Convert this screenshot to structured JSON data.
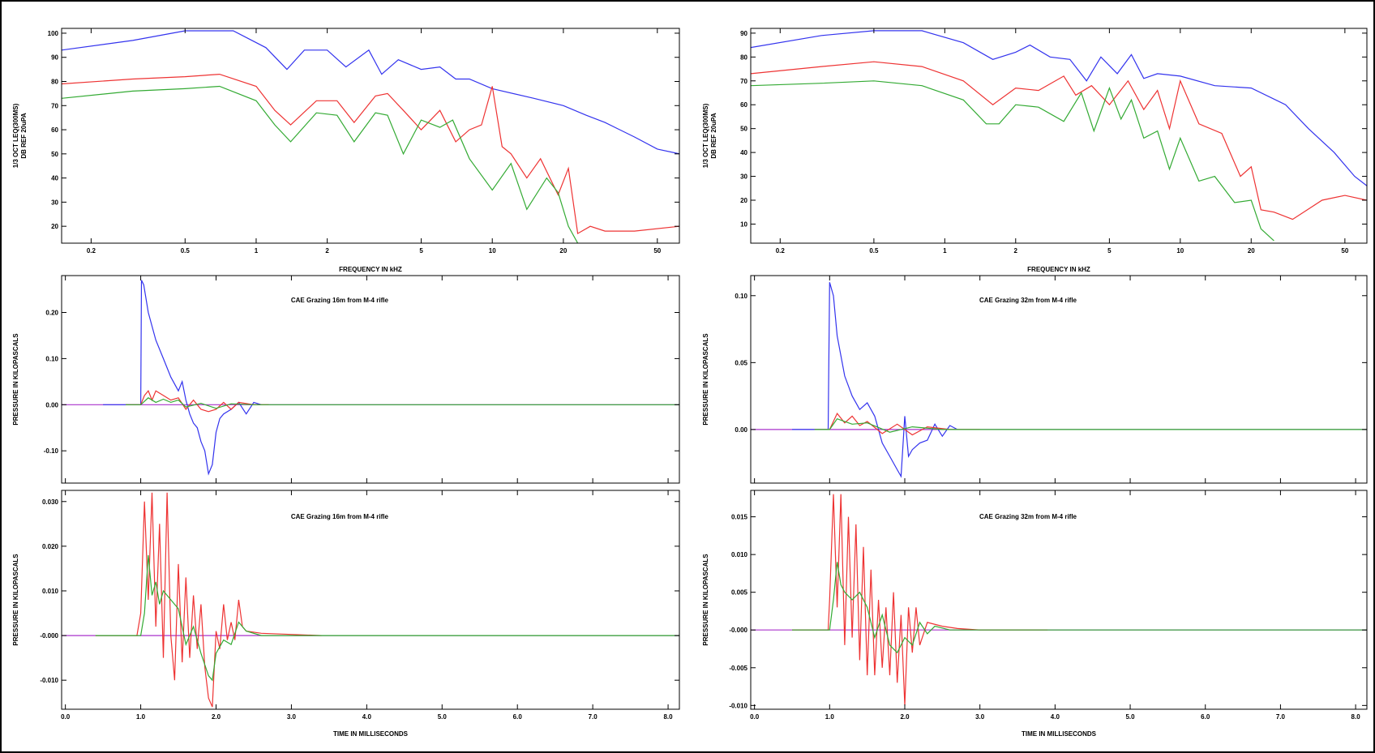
{
  "colors": {
    "blue": "#3333ee",
    "red": "#ee3333",
    "green": "#33aa33",
    "purple": "#aa33cc"
  },
  "chart_data": [
    {
      "type": "line",
      "name": "spectrum-left",
      "xscale": "log",
      "xlim": [
        0.15,
        62
      ],
      "ylim": [
        13,
        102
      ],
      "xticks": [
        0.2,
        0.5,
        1,
        2,
        5,
        10,
        20,
        50
      ],
      "xtick_labels": [
        "0.2",
        "0.5",
        "1",
        "2",
        "5",
        "10",
        "20",
        "50"
      ],
      "yticks": [
        20,
        30,
        40,
        50,
        60,
        70,
        80,
        90,
        100
      ],
      "ytick_labels": [
        "20",
        "30",
        "40",
        "50",
        "60",
        "70",
        "80",
        "90",
        "100"
      ],
      "xlabel": "FREQUENCY IN kHZ",
      "ylabel": "1/3 OCT LEQ(300MS)",
      "ylabel2": "DB REF 20uPA",
      "title": "",
      "series": [
        {
          "color": "blue",
          "x": [
            0.15,
            0.3,
            0.5,
            0.8,
            1.1,
            1.35,
            1.6,
            2.0,
            2.4,
            3.0,
            3.4,
            4.0,
            5.0,
            6.0,
            7.0,
            8.0,
            10.0,
            15.0,
            20.0,
            25.0,
            30.0,
            40.0,
            50.0,
            62.0
          ],
          "y": [
            93,
            97,
            101,
            101,
            94,
            85,
            93,
            93,
            86,
            93,
            83,
            89,
            85,
            86,
            81,
            81,
            77,
            73,
            70,
            66,
            63,
            57,
            52,
            50
          ]
        },
        {
          "color": "red",
          "x": [
            0.15,
            0.3,
            0.5,
            0.7,
            1.0,
            1.2,
            1.4,
            1.8,
            2.2,
            2.6,
            3.2,
            3.6,
            4.2,
            5.0,
            6.0,
            7.0,
            8.0,
            9.0,
            10.0,
            11.0,
            12.0,
            14.0,
            16.0,
            19.0,
            21.0,
            23.0,
            26.0,
            30.0,
            40.0,
            62.0
          ],
          "y": [
            79,
            81,
            82,
            83,
            78,
            68,
            62,
            72,
            72,
            63,
            74,
            75,
            68,
            60,
            68,
            55,
            60,
            62,
            78,
            53,
            50,
            40,
            48,
            33,
            44,
            17,
            20,
            18,
            18,
            20
          ]
        },
        {
          "color": "green",
          "x": [
            0.15,
            0.3,
            0.5,
            0.7,
            1.0,
            1.2,
            1.4,
            1.8,
            2.2,
            2.6,
            3.2,
            3.6,
            4.2,
            5.0,
            6.0,
            6.8,
            8.0,
            10.0,
            12.0,
            14.0,
            17.0,
            19.0,
            21.0,
            23.0
          ],
          "y": [
            73,
            76,
            77,
            78,
            72,
            62,
            55,
            67,
            66,
            55,
            67,
            66,
            50,
            64,
            61,
            64,
            48,
            35,
            46,
            27,
            40,
            34,
            20,
            13
          ]
        }
      ]
    },
    {
      "type": "line",
      "name": "spectrum-right",
      "xscale": "log",
      "xlim": [
        0.15,
        62
      ],
      "ylim": [
        2,
        92
      ],
      "xticks": [
        0.2,
        0.5,
        1,
        2,
        5,
        10,
        20,
        50
      ],
      "xtick_labels": [
        "0.2",
        "0.5",
        "1",
        "2",
        "5",
        "10",
        "20",
        "50"
      ],
      "yticks": [
        10,
        20,
        30,
        40,
        50,
        60,
        70,
        80,
        90
      ],
      "ytick_labels": [
        "10",
        "20",
        "30",
        "40",
        "50",
        "60",
        "70",
        "80",
        "90"
      ],
      "xlabel": "FREQUENCY IN kHZ",
      "ylabel": "1/3 OCT LEQ(300MS)",
      "ylabel2": "DB REF 20uPA",
      "title": "",
      "series": [
        {
          "color": "blue",
          "x": [
            0.15,
            0.3,
            0.5,
            0.8,
            1.2,
            1.6,
            2.0,
            2.3,
            2.8,
            3.4,
            4.0,
            4.6,
            5.4,
            6.2,
            7.0,
            8.0,
            10.0,
            14.0,
            20.0,
            28.0,
            35.0,
            45.0,
            55.0,
            62.0
          ],
          "y": [
            84,
            89,
            91,
            91,
            86,
            79,
            82,
            85,
            80,
            79,
            70,
            80,
            73,
            81,
            71,
            73,
            72,
            68,
            67,
            60,
            50,
            40,
            30,
            26
          ]
        },
        {
          "color": "red",
          "x": [
            0.15,
            0.3,
            0.5,
            0.8,
            1.2,
            1.6,
            2.0,
            2.5,
            3.2,
            3.6,
            4.2,
            5.0,
            6.0,
            7.0,
            8.0,
            9.0,
            10.0,
            12.0,
            15.0,
            18.0,
            20.0,
            22.0,
            25.0,
            30.0,
            40.0,
            50.0,
            62.0
          ],
          "y": [
            73,
            76,
            78,
            76,
            70,
            60,
            67,
            66,
            72,
            64,
            68,
            60,
            70,
            58,
            66,
            50,
            70,
            52,
            48,
            30,
            34,
            16,
            15,
            12,
            20,
            22,
            20
          ]
        },
        {
          "color": "green",
          "x": [
            0.15,
            0.3,
            0.5,
            0.8,
            1.2,
            1.5,
            1.7,
            2.0,
            2.5,
            3.2,
            3.8,
            4.3,
            5.0,
            5.6,
            6.2,
            7.0,
            8.0,
            9.0,
            10.0,
            12.0,
            14.0,
            17.0,
            20.0,
            22.0,
            25.0
          ],
          "y": [
            68,
            69,
            70,
            68,
            62,
            52,
            52,
            60,
            59,
            53,
            65,
            49,
            67,
            54,
            62,
            46,
            49,
            33,
            46,
            28,
            30,
            19,
            20,
            8,
            3
          ]
        }
      ]
    },
    {
      "type": "line",
      "name": "pressure-left",
      "title": "CAE Grazing 16m from M-4 rifle",
      "xlim": [
        -0.05,
        8.15
      ],
      "ylim": [
        -0.17,
        0.28
      ],
      "xticks": [
        0,
        1,
        2,
        3,
        4,
        5,
        6,
        7,
        8
      ],
      "xtick_labels": [],
      "yticks": [
        0.2,
        0.1,
        0.0,
        -0.1
      ],
      "ytick_labels": [
        "0.20",
        "0.10",
        "0.00",
        "-0.10"
      ],
      "xlabel": "",
      "ylabel": "PRESSURE IN KILOPASCALS",
      "series": [
        {
          "color": "purple",
          "x": [
            -0.05,
            8.15
          ],
          "y": [
            0,
            0
          ]
        },
        {
          "color": "blue",
          "x": [
            0.5,
            1.0,
            1.01,
            1.04,
            1.1,
            1.2,
            1.3,
            1.4,
            1.5,
            1.55,
            1.6,
            1.65,
            1.7,
            1.75,
            1.8,
            1.85,
            1.9,
            1.95,
            2.0,
            2.05,
            2.1,
            2.2,
            2.3,
            2.4,
            2.5,
            2.6
          ],
          "y": [
            0,
            0,
            0.27,
            0.26,
            0.2,
            0.14,
            0.1,
            0.06,
            0.03,
            0.05,
            0.01,
            -0.02,
            -0.04,
            -0.05,
            -0.08,
            -0.1,
            -0.15,
            -0.13,
            -0.06,
            -0.03,
            -0.02,
            -0.01,
            0.005,
            -0.02,
            0.005,
            0
          ]
        },
        {
          "color": "red",
          "x": [
            0.8,
            1.0,
            1.05,
            1.1,
            1.15,
            1.2,
            1.3,
            1.4,
            1.5,
            1.6,
            1.7,
            1.8,
            1.9,
            2.0,
            2.1,
            2.2,
            2.3,
            2.5,
            2.7
          ],
          "y": [
            0,
            0,
            0.02,
            0.03,
            0.01,
            0.03,
            0.02,
            0.01,
            0.015,
            -0.01,
            0.01,
            -0.01,
            -0.015,
            -0.01,
            0.005,
            -0.01,
            0.005,
            0,
            0
          ]
        },
        {
          "color": "green",
          "x": [
            0.8,
            1.0,
            1.1,
            1.2,
            1.3,
            1.4,
            1.5,
            1.6,
            1.8,
            2.0,
            2.2,
            2.5,
            8.15
          ],
          "y": [
            0,
            0,
            0.015,
            0.005,
            0.012,
            0.005,
            0.01,
            -0.005,
            0.003,
            -0.008,
            0.002,
            0,
            0
          ]
        }
      ]
    },
    {
      "type": "line",
      "name": "pressure-right",
      "title": "CAE Grazing 32m from M-4 rifle",
      "xlim": [
        -0.05,
        8.15
      ],
      "ylim": [
        -0.04,
        0.115
      ],
      "xticks": [
        0,
        1,
        2,
        3,
        4,
        5,
        6,
        7,
        8
      ],
      "xtick_labels": [],
      "yticks": [
        0.1,
        0.05,
        0.0
      ],
      "ytick_labels": [
        "0.10",
        "0.05",
        "0.00"
      ],
      "xlabel": "",
      "ylabel": "PRESSURE IN KILOPASCALS",
      "series": [
        {
          "color": "purple",
          "x": [
            -0.05,
            8.15
          ],
          "y": [
            0,
            0
          ]
        },
        {
          "color": "blue",
          "x": [
            0.5,
            0.98,
            1.0,
            1.05,
            1.1,
            1.2,
            1.3,
            1.4,
            1.5,
            1.6,
            1.7,
            1.8,
            1.9,
            1.95,
            2.0,
            2.05,
            2.1,
            2.2,
            2.3,
            2.4,
            2.5,
            2.6,
            2.7
          ],
          "y": [
            0,
            0,
            0.11,
            0.1,
            0.07,
            0.04,
            0.025,
            0.015,
            0.02,
            0.01,
            -0.01,
            -0.02,
            -0.03,
            -0.035,
            0.01,
            -0.02,
            -0.015,
            -0.01,
            -0.008,
            0.004,
            -0.005,
            0.003,
            0
          ]
        },
        {
          "color": "red",
          "x": [
            0.8,
            1.0,
            1.1,
            1.2,
            1.3,
            1.4,
            1.5,
            1.7,
            1.9,
            2.1,
            2.3,
            2.6,
            3.0
          ],
          "y": [
            0,
            0,
            0.012,
            0.005,
            0.01,
            0.003,
            0.006,
            -0.003,
            0.004,
            -0.004,
            0.002,
            0,
            0
          ]
        },
        {
          "color": "green",
          "x": [
            0.8,
            1.0,
            1.1,
            1.3,
            1.5,
            1.8,
            2.1,
            2.5,
            8.15
          ],
          "y": [
            0,
            0,
            0.008,
            0.004,
            0.005,
            -0.002,
            0.002,
            0,
            0
          ]
        }
      ]
    },
    {
      "type": "line",
      "name": "filtered-left",
      "title": "CAE Grazing 16m from M-4 rifle",
      "xlim": [
        -0.05,
        8.15
      ],
      "ylim": [
        -0.0165,
        0.0325
      ],
      "xticks": [
        0,
        1,
        2,
        3,
        4,
        5,
        6,
        7,
        8
      ],
      "xtick_labels": [
        "0.0",
        "1.0",
        "2.0",
        "3.0",
        "4.0",
        "5.0",
        "6.0",
        "7.0",
        "8.0"
      ],
      "yticks": [
        0.03,
        0.02,
        0.01,
        0,
        -0.01
      ],
      "ytick_labels": [
        "0.030",
        "0.020",
        "0.010",
        "-0.000",
        "-0.010"
      ],
      "xlabel": "TIME IN MILLISECONDS",
      "ylabel": "PRESSURE IN KILOPASCALS",
      "series": [
        {
          "color": "purple",
          "x": [
            -0.05,
            8.15
          ],
          "y": [
            0,
            0
          ]
        },
        {
          "color": "red",
          "x": [
            0.4,
            0.95,
            1.0,
            1.05,
            1.1,
            1.15,
            1.2,
            1.25,
            1.3,
            1.35,
            1.4,
            1.45,
            1.5,
            1.55,
            1.6,
            1.65,
            1.7,
            1.75,
            1.8,
            1.85,
            1.9,
            1.95,
            2.0,
            2.05,
            2.1,
            2.15,
            2.2,
            2.25,
            2.3,
            2.35,
            2.4,
            2.6,
            3.4
          ],
          "y": [
            0,
            0,
            0.005,
            0.03,
            0.008,
            0.032,
            0.002,
            0.025,
            -0.005,
            0.032,
            0.0,
            -0.01,
            0.016,
            -0.006,
            0.013,
            -0.005,
            0.009,
            -0.003,
            0.007,
            -0.007,
            -0.014,
            -0.016,
            0.001,
            -0.003,
            0.007,
            -0.001,
            0.003,
            -0.001,
            0.008,
            0.002,
            0.001,
            0.0005,
            0
          ]
        },
        {
          "color": "green",
          "x": [
            0.4,
            1.0,
            1.05,
            1.1,
            1.15,
            1.2,
            1.25,
            1.3,
            1.4,
            1.5,
            1.6,
            1.7,
            1.8,
            1.9,
            1.95,
            2.0,
            2.1,
            2.2,
            2.3,
            2.4,
            2.6,
            8.15
          ],
          "y": [
            0,
            0,
            0.005,
            0.018,
            0.009,
            0.012,
            0.007,
            0.01,
            0.008,
            0.006,
            -0.002,
            0.002,
            -0.004,
            -0.009,
            -0.01,
            -0.004,
            -0.001,
            -0.002,
            0.003,
            0.001,
            0,
            0
          ]
        }
      ]
    },
    {
      "type": "line",
      "name": "filtered-right",
      "title": "CAE Grazing 32m from M-4 rifle",
      "xlim": [
        -0.05,
        8.15
      ],
      "ylim": [
        -0.0105,
        0.0185
      ],
      "xticks": [
        0,
        1,
        2,
        3,
        4,
        5,
        6,
        7,
        8
      ],
      "xtick_labels": [
        "0.0",
        "1.0",
        "2.0",
        "3.0",
        "4.0",
        "5.0",
        "6.0",
        "7.0",
        "8.0"
      ],
      "yticks": [
        0.015,
        0.01,
        0.005,
        0,
        -0.005,
        -0.01
      ],
      "ytick_labels": [
        "0.015",
        "0.010",
        "0.005",
        "-0.000",
        "-0.005",
        "-0.010"
      ],
      "xlabel": "TIME IN MILLISECONDS",
      "ylabel": "PRESSURE IN KILOPASCALS",
      "series": [
        {
          "color": "purple",
          "x": [
            -0.05,
            8.15
          ],
          "y": [
            0,
            0
          ]
        },
        {
          "color": "red",
          "x": [
            0.5,
            0.98,
            1.0,
            1.05,
            1.1,
            1.15,
            1.2,
            1.25,
            1.3,
            1.35,
            1.4,
            1.45,
            1.5,
            1.55,
            1.6,
            1.65,
            1.7,
            1.75,
            1.8,
            1.85,
            1.9,
            1.95,
            2.0,
            2.05,
            2.1,
            2.15,
            2.2,
            2.3,
            2.5,
            2.7,
            3.0,
            3.9
          ],
          "y": [
            0,
            0,
            0.004,
            0.018,
            0.003,
            0.018,
            -0.002,
            0.015,
            -0.001,
            0.014,
            -0.004,
            0.011,
            -0.006,
            0.008,
            -0.006,
            0.004,
            -0.005,
            0.003,
            -0.006,
            0.005,
            -0.007,
            0.002,
            -0.01,
            0.003,
            -0.003,
            0.003,
            -0.002,
            0.001,
            0.0005,
            0.0002,
            0,
            0
          ]
        },
        {
          "color": "green",
          "x": [
            0.5,
            1.0,
            1.05,
            1.1,
            1.15,
            1.2,
            1.3,
            1.4,
            1.5,
            1.6,
            1.7,
            1.8,
            1.9,
            2.0,
            2.1,
            2.2,
            2.3,
            2.4,
            2.6,
            8.15
          ],
          "y": [
            0,
            0,
            0.004,
            0.009,
            0.006,
            0.005,
            0.004,
            0.005,
            0.003,
            -0.001,
            0.002,
            -0.002,
            -0.003,
            -0.001,
            -0.002,
            0.001,
            -0.0005,
            0.0005,
            0,
            0
          ]
        }
      ]
    }
  ]
}
